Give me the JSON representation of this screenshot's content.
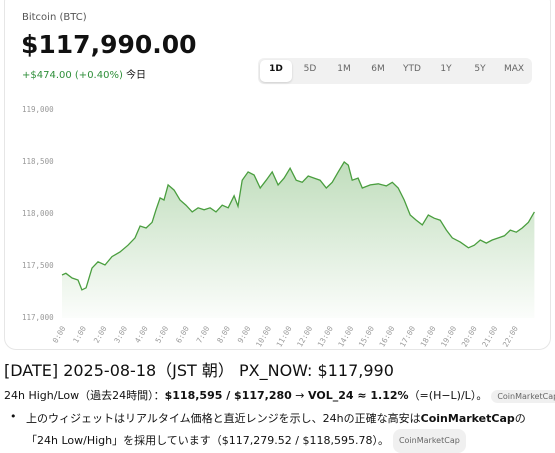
{
  "widget": {
    "asset": "Bitcoin (BTC)",
    "price": "$117,990.00",
    "change": "+$474.00 (+0.40%)",
    "period": "今日",
    "ranges": [
      "1D",
      "5D",
      "1M",
      "6M",
      "YTD",
      "1Y",
      "5Y",
      "MAX"
    ],
    "selected_range": 0
  },
  "chart_data": {
    "type": "line",
    "x": [
      0,
      0.19,
      0.49,
      0.78,
      0.97,
      1.17,
      1.46,
      1.75,
      2.09,
      2.43,
      2.82,
      3.21,
      3.55,
      3.8,
      4.09,
      4.38,
      4.57,
      4.77,
      4.96,
      5.16,
      5.45,
      5.74,
      6.03,
      6.33,
      6.62,
      6.91,
      7.2,
      7.49,
      7.79,
      8.08,
      8.37,
      8.56,
      8.76,
      9.05,
      9.34,
      9.64,
      9.93,
      10.22,
      10.51,
      10.8,
      11.09,
      11.39,
      11.68,
      11.97,
      12.26,
      12.55,
      12.85,
      13.14,
      13.43,
      13.72,
      13.92,
      14.11,
      14.4,
      14.6,
      14.99,
      15.38,
      15.77,
      16.06,
      16.35,
      16.64,
      16.93,
      17.23,
      17.52,
      17.81,
      18.1,
      18.39,
      18.69,
      18.98,
      19.37,
      19.76,
      20.05,
      20.34,
      20.63,
      20.92,
      21.22,
      21.51,
      21.8,
      22.09,
      22.38,
      22.68,
      22.97
    ],
    "series": [
      {
        "color": "#4a9e3f",
        "values": [
          117413,
          117430,
          117385,
          117365,
          117270,
          117290,
          117480,
          117540,
          117510,
          117590,
          117635,
          117700,
          117770,
          117885,
          117865,
          117920,
          118040,
          118155,
          118135,
          118280,
          118230,
          118135,
          118085,
          118020,
          118060,
          118040,
          118060,
          118020,
          118085,
          118060,
          118175,
          118075,
          118325,
          118405,
          118375,
          118250,
          118325,
          118405,
          118280,
          118345,
          118440,
          118325,
          118305,
          118365,
          118345,
          118325,
          118250,
          118305,
          118405,
          118500,
          118470,
          118325,
          118345,
          118250,
          118280,
          118290,
          118270,
          118305,
          118250,
          118135,
          117990,
          117940,
          117895,
          117990,
          117960,
          117940,
          117845,
          117770,
          117730,
          117675,
          117700,
          117750,
          117720,
          117750,
          117770,
          117790,
          117845,
          117825,
          117865,
          117920,
          118020
        ]
      }
    ],
    "xlim": [
      0,
      23
    ],
    "xticks": [
      {
        "value": 0,
        "label": "0:00"
      },
      {
        "value": 1,
        "label": "1:00"
      },
      {
        "value": 2,
        "label": "2:00"
      },
      {
        "value": 3,
        "label": "3:00"
      },
      {
        "value": 4,
        "label": "4:00"
      },
      {
        "value": 5,
        "label": "5:00"
      },
      {
        "value": 6,
        "label": "6:00"
      },
      {
        "value": 7,
        "label": "7:00"
      },
      {
        "value": 8,
        "label": "8:00"
      },
      {
        "value": 9,
        "label": "9:00"
      },
      {
        "value": 10,
        "label": "10:00"
      },
      {
        "value": 11,
        "label": "11:00"
      },
      {
        "value": 12,
        "label": "12:00"
      },
      {
        "value": 13,
        "label": "13:00"
      },
      {
        "value": 14,
        "label": "14:00"
      },
      {
        "value": 15,
        "label": "15:00"
      },
      {
        "value": 16,
        "label": "16:00"
      },
      {
        "value": 17,
        "label": "17:00"
      },
      {
        "value": 18,
        "label": "18:00"
      },
      {
        "value": 19,
        "label": "19:00"
      },
      {
        "value": 20,
        "label": "20:00"
      },
      {
        "value": 21,
        "label": "21:00"
      },
      {
        "value": 22,
        "label": "22:00"
      }
    ],
    "ylim": [
      117000,
      119000
    ],
    "yticks": [
      {
        "value": 117000,
        "label": "117,000"
      },
      {
        "value": 117500,
        "label": "117,500"
      },
      {
        "value": 118000,
        "label": "118,000"
      },
      {
        "value": 118500,
        "label": "118,500"
      },
      {
        "value": 119000,
        "label": "119,000"
      }
    ],
    "grid": false
  },
  "heading": "[DATE] 2025-08-18（JST 朝） PX_NOW: $117,990",
  "summary": {
    "label": "24h High/Low（過去24時間）：",
    "high_low": "$118,595 / $117,280",
    "arrow": " → ",
    "vol": "VOL_24 ≈ 1.12%",
    "formula": "（=(H−L)/L）。",
    "source": "CoinMarketCap"
  },
  "bullet": {
    "before": "上のウィジェットはリアルタイム価格と直近レンジを示し、24hの正確な高安は",
    "bold": "CoinMarketCap",
    "after": "の「24h Low/High」を採用しています（$117,279.52 / $118,595.78）。",
    "source": "CoinMarketCap"
  }
}
